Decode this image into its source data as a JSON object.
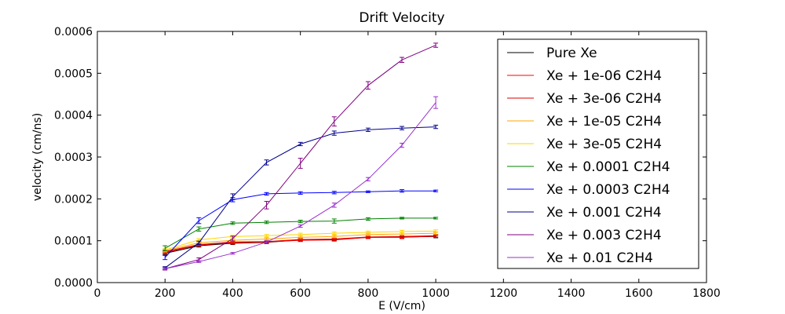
{
  "chart_data": {
    "type": "line",
    "title": "Drift Velocity",
    "xlabel": "E (V/cm)",
    "ylabel": "velocity (cm/ns)",
    "xlim": [
      0,
      1800
    ],
    "ylim": [
      0,
      0.0006
    ],
    "xticks": [
      0,
      200,
      400,
      600,
      800,
      1000,
      1200,
      1400,
      1600,
      1800
    ],
    "xtick_labels": [
      "0",
      "200",
      "400",
      "600",
      "800",
      "1000",
      "1200",
      "1400",
      "1600",
      "1800"
    ],
    "yticks": [
      0,
      0.0001,
      0.0002,
      0.0003,
      0.0004,
      0.0005,
      0.0006
    ],
    "ytick_labels": [
      "0.0000",
      "0.0001",
      "0.0002",
      "0.0003",
      "0.0004",
      "0.0005",
      "0.0006"
    ],
    "grid": false,
    "legend_position": "top-right",
    "x": [
      200,
      300,
      400,
      500,
      600,
      700,
      800,
      900,
      1000
    ],
    "series": [
      {
        "name": "Pure Xe",
        "color": "#000000",
        "values": [
          7e-05,
          8.8e-05,
          9.4e-05,
          9.6e-05,
          0.000102,
          0.000103,
          0.000108,
          0.000109,
          0.00011
        ],
        "errors": [
          3e-06,
          3e-06,
          3e-06,
          3e-06,
          3e-06,
          3e-06,
          3e-06,
          3e-06,
          3e-06
        ]
      },
      {
        "name": "Xe + 1e-06 C2H4",
        "color": "#ff0000",
        "values": [
          7.2e-05,
          9e-05,
          9.5e-05,
          9.7e-05,
          0.000101,
          0.000102,
          0.000108,
          0.000108,
          0.000111
        ],
        "errors": [
          3e-06,
          3e-06,
          3e-06,
          3e-06,
          3e-06,
          3e-06,
          3e-06,
          3e-06,
          3e-06
        ]
      },
      {
        "name": "Xe + 3e-06 C2H4",
        "color": "#dd0000",
        "values": [
          7.4e-05,
          9.1e-05,
          9.7e-05,
          9.8e-05,
          0.000103,
          0.000104,
          0.000109,
          0.00011,
          0.000112
        ],
        "errors": [
          3e-06,
          3e-06,
          3e-06,
          3e-06,
          3e-06,
          3e-06,
          3e-06,
          3e-06,
          3e-06
        ]
      },
      {
        "name": "Xe + 1e-05 C2H4",
        "color": "#ffa500",
        "values": [
          7.6e-05,
          9.5e-05,
          0.000101,
          0.000104,
          0.000108,
          0.00011,
          0.000115,
          0.000116,
          0.000118
        ],
        "errors": [
          3e-06,
          3e-06,
          3e-06,
          3e-06,
          3e-06,
          3e-06,
          3e-06,
          3e-06,
          3e-06
        ]
      },
      {
        "name": "Xe + 3e-05 C2H4",
        "color": "#ffd700",
        "values": [
          7.8e-05,
          0.000102,
          0.00011,
          0.000112,
          0.000115,
          0.000118,
          0.00012,
          0.000122,
          0.000123
        ],
        "errors": [
          3e-06,
          3e-06,
          3e-06,
          3e-06,
          3e-06,
          3e-06,
          3e-06,
          3e-06,
          3e-06
        ]
      },
      {
        "name": "Xe + 0.0001 C2H4",
        "color": "#008000",
        "values": [
          8.2e-05,
          0.000128,
          0.000142,
          0.000144,
          0.000146,
          0.000147,
          0.000152,
          0.000154,
          0.000154
        ],
        "errors": [
          6e-06,
          5e-06,
          3e-06,
          3e-06,
          3e-06,
          5e-06,
          3e-06,
          2e-06,
          2e-06
        ]
      },
      {
        "name": "Xe + 0.0003 C2H4",
        "color": "#0000ff",
        "values": [
          6e-05,
          0.000148,
          0.000198,
          0.000212,
          0.000214,
          0.000215,
          0.000217,
          0.000219,
          0.000219
        ],
        "errors": [
          5e-06,
          7e-06,
          5e-06,
          3e-06,
          3e-06,
          3e-06,
          2e-06,
          3e-06,
          2e-06
        ]
      },
      {
        "name": "Xe + 0.001 C2H4",
        "color": "#00008b",
        "values": [
          3.5e-05,
          9.5e-05,
          0.000205,
          0.000287,
          0.000331,
          0.000357,
          0.000365,
          0.000369,
          0.000372
        ],
        "errors": [
          3e-06,
          4e-06,
          7e-06,
          6e-06,
          4e-06,
          5e-06,
          4e-06,
          4e-06,
          4e-06
        ]
      },
      {
        "name": "Xe + 0.003 C2H4",
        "color": "#800080",
        "values": [
          3.3e-05,
          5.5e-05,
          0.000105,
          0.000185,
          0.000285,
          0.000385,
          0.000471,
          0.000532,
          0.000567
        ],
        "errors": [
          3e-06,
          4e-06,
          6e-06,
          9e-06,
          1.2e-05,
          1.1e-05,
          9e-06,
          6e-06,
          5e-06
        ]
      },
      {
        "name": "Xe + 0.01 C2H4",
        "color": "#9932cc",
        "values": [
          3.3e-05,
          5e-05,
          7e-05,
          9.7e-05,
          0.000135,
          0.000185,
          0.000247,
          0.000328,
          0.00043
        ],
        "errors": [
          2e-06,
          2e-06,
          2e-06,
          3e-06,
          3e-06,
          5e-06,
          4e-06,
          5e-06,
          1.4e-05
        ]
      }
    ]
  }
}
